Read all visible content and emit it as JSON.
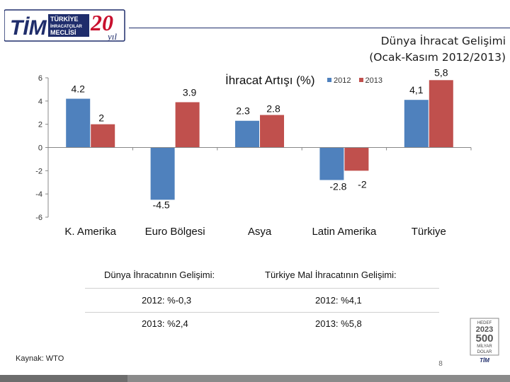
{
  "logo": {
    "brand": "TİM",
    "line1": "TÜRKİYE",
    "line2": "İHRACATÇILAR",
    "line3": "MECLİSİ",
    "anniversary_number": "20",
    "anniversary_word": "yıl"
  },
  "slide": {
    "title": "Dünya İhracat Gelişimi",
    "subtitle": "(Ocak-Kasım 2012/2013)"
  },
  "chart_data": {
    "type": "bar",
    "title": "İhracat Artışı (%)",
    "categories": [
      "K. Amerika",
      "Euro Bölgesi",
      "Asya",
      "Latin Amerika",
      "Türkiye"
    ],
    "series": [
      {
        "name": "2012",
        "color": "#4f81bd",
        "values": [
          4.2,
          -4.5,
          2.3,
          -2.8,
          4.1
        ],
        "labels": [
          "4.2",
          "-4.5",
          "2.3",
          "-2.8",
          "4,1"
        ]
      },
      {
        "name": "2013",
        "color": "#c0504d",
        "values": [
          2,
          3.9,
          2.8,
          -2,
          5.8
        ],
        "labels": [
          "2",
          "3.9",
          "2.8",
          "-2",
          "5,8"
        ]
      }
    ],
    "ylim": [
      -6,
      6
    ],
    "yticks": [
      "6",
      "4",
      "2",
      "0",
      "-2",
      "-4",
      "-6"
    ],
    "grid": false,
    "legend": "top-right"
  },
  "info": {
    "world_title": "Dünya İhracatının Gelişimi:",
    "turkey_title": "Türkiye Mal İhracatının Gelişimi:",
    "world_2012": "2012: %-0,3",
    "world_2013": "2013: %2,4",
    "turkey_2012": "2012: %4,1",
    "turkey_2013": "2013: %5,8"
  },
  "footer": {
    "source": "Kaynak: WTO",
    "page": "8"
  },
  "badge": {
    "line1": "HEDEF",
    "line2": "2023",
    "line3": "500",
    "line4": "MİLYAR",
    "line5": "DOLAR",
    "line6": "TİM"
  }
}
